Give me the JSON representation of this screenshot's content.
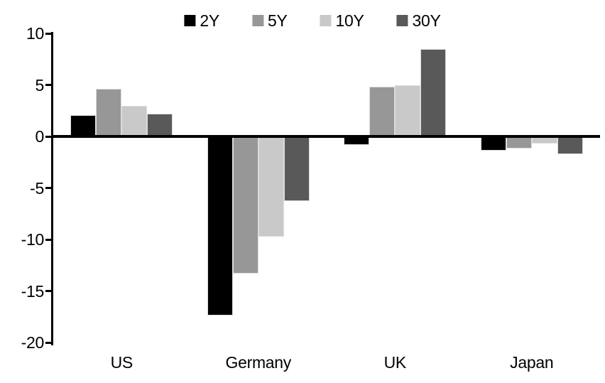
{
  "chart_data": {
    "type": "bar",
    "title": "",
    "categories": [
      "US",
      "Germany",
      "UK",
      "Japan"
    ],
    "series": [
      {
        "name": "2Y",
        "color": "#000000",
        "values": [
          2.1,
          -17.4,
          -0.8,
          -1.4
        ]
      },
      {
        "name": "5Y",
        "color": "#979797",
        "values": [
          4.6,
          -13.3,
          4.8,
          -1.2
        ]
      },
      {
        "name": "10Y",
        "color": "#c9c9c9",
        "values": [
          3.0,
          -9.7,
          5.0,
          -0.7
        ]
      },
      {
        "name": "30Y",
        "color": "#595959",
        "values": [
          2.2,
          -6.3,
          8.5,
          -1.7
        ]
      }
    ],
    "xlabel": "",
    "ylabel": "",
    "ylim": [
      -20,
      10
    ],
    "yticks": [
      10,
      5,
      0,
      -5,
      -10,
      -15,
      -20
    ],
    "ytick_labels": [
      "10",
      "5",
      "0",
      "-5",
      "-10",
      "-15",
      "-20"
    ],
    "grid": false,
    "legend_position": "top-center",
    "axis_color": "#000000",
    "background_color": "#ffffff"
  }
}
